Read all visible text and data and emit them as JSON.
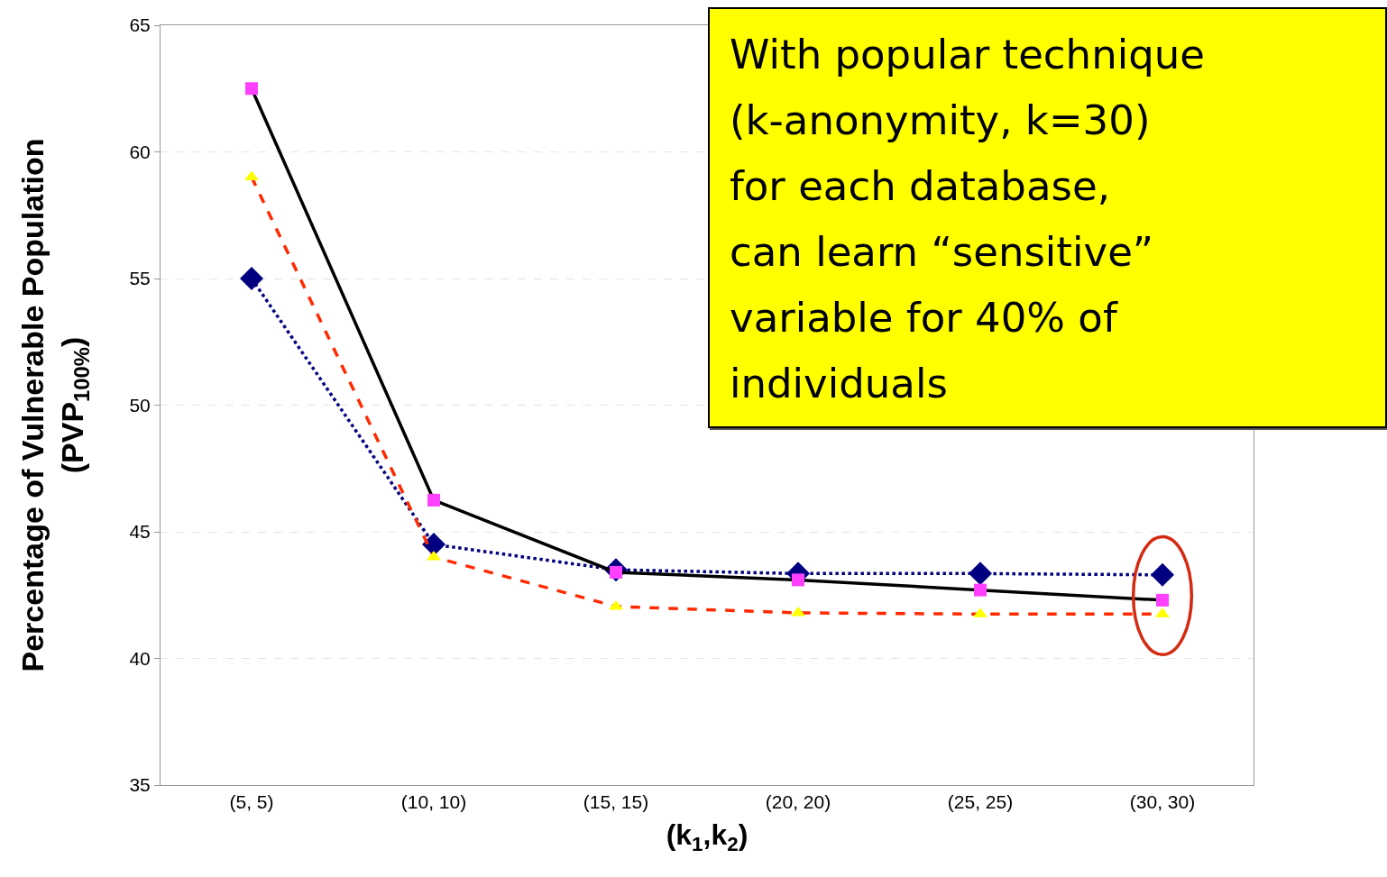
{
  "chart_data": {
    "type": "line",
    "xlabel": "(k$_{1}$,k$_{2}$)",
    "ylabel": "Percentage of Vulnerable Population\n(PVP$_{100%}$)",
    "categories": [
      "(5, 5)",
      "(10, 10)",
      "(15, 15)",
      "(20, 20)",
      "(25, 25)",
      "(30, 30)"
    ],
    "series": [
      {
        "color": "#000080",
        "marker": "diamond",
        "line_style": "dotted",
        "values": [
          55.0,
          44.5,
          43.5,
          43.35,
          43.35,
          43.3
        ]
      },
      {
        "color": "#000000",
        "colors": [
          "#ff40ff",
          "#ff40ff",
          "#ff40ff",
          "#ff40ff",
          "#ff40ff",
          "#ff40ff"
        ],
        "marker": "square",
        "line_style": "solid",
        "values": [
          62.5,
          46.25,
          43.4,
          43.1,
          42.7,
          42.3
        ]
      },
      {
        "color": "#ff2a00",
        "colors": [
          "#ffff00",
          "#ffff00",
          "#ffff00",
          "#ffff00",
          "#ffff00",
          "#ffff00"
        ],
        "marker": "triangle",
        "line_style": "dashed",
        "values": [
          59.0,
          44.0,
          42.05,
          41.8,
          41.75,
          41.75
        ]
      }
    ],
    "ylim": [
      35,
      65
    ],
    "yticks": [
      35,
      40,
      45,
      50,
      55,
      60,
      65
    ],
    "grid": "y",
    "annotations": [
      "With popular technique\n(k-anonymity, k=30)\nfor each database,\ncan learn “sensitive”\nvariable for 40% of\nindividuals"
    ]
  }
}
